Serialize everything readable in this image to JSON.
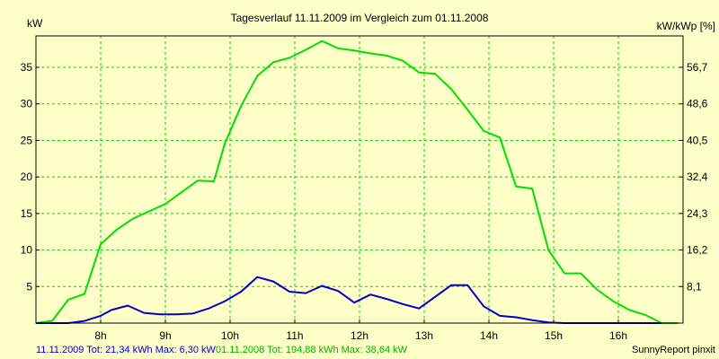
{
  "chart_data": {
    "type": "line",
    "title": "Tagesverlauf 11.11.2009 im Vergleich zum 01.11.2008",
    "ylabel_left": "kW",
    "ylabel_right": "kW/kWp [%]",
    "x_range": [
      7.0,
      17.0
    ],
    "ylim": [
      0,
      39.3
    ],
    "grid": true,
    "x_ticks": [
      {
        "value": 8,
        "label": "8h"
      },
      {
        "value": 9,
        "label": "9h"
      },
      {
        "value": 10,
        "label": "10h"
      },
      {
        "value": 11,
        "label": "11h"
      },
      {
        "value": 12,
        "label": "12h"
      },
      {
        "value": 13,
        "label": "13h"
      },
      {
        "value": 14,
        "label": "14h"
      },
      {
        "value": 15,
        "label": "15h"
      },
      {
        "value": 16,
        "label": "16h"
      }
    ],
    "y_ticks_left": [
      {
        "value": 5,
        "label": "5"
      },
      {
        "value": 10,
        "label": "10"
      },
      {
        "value": 15,
        "label": "15"
      },
      {
        "value": 20,
        "label": "20"
      },
      {
        "value": 25,
        "label": "25"
      },
      {
        "value": 30,
        "label": "30"
      },
      {
        "value": 35,
        "label": "35"
      }
    ],
    "y_ticks_right": [
      {
        "value": 5,
        "label": "8,1"
      },
      {
        "value": 10,
        "label": "16,2"
      },
      {
        "value": 15,
        "label": "24,3"
      },
      {
        "value": 20,
        "label": "32,4"
      },
      {
        "value": 25,
        "label": "40,5"
      },
      {
        "value": 30,
        "label": "48,6"
      },
      {
        "value": 35,
        "label": "56,7"
      }
    ],
    "series": [
      {
        "name": "01.11.2008",
        "color": "#00e000",
        "x": [
          7.0,
          7.25,
          7.5,
          7.75,
          8.0,
          8.25,
          8.5,
          8.75,
          9.0,
          9.25,
          9.5,
          9.75,
          9.92,
          10.17,
          10.42,
          10.67,
          10.92,
          11.17,
          11.42,
          11.67,
          11.92,
          12.17,
          12.42,
          12.67,
          12.92,
          13.17,
          13.42,
          13.67,
          13.92,
          14.17,
          14.42,
          14.67,
          14.92,
          15.17,
          15.42,
          15.67,
          15.92,
          16.17,
          16.42,
          16.67,
          16.92
        ],
        "values": [
          0.0,
          0.3,
          3.2,
          4.0,
          10.8,
          12.8,
          14.3,
          15.3,
          16.3,
          17.9,
          19.5,
          19.4,
          24.6,
          29.7,
          33.8,
          35.7,
          36.3,
          37.4,
          38.6,
          37.6,
          37.3,
          36.9,
          36.6,
          35.9,
          34.3,
          34.1,
          32.0,
          29.2,
          26.3,
          25.4,
          18.7,
          18.4,
          10.0,
          6.8,
          6.8,
          4.6,
          3.0,
          1.8,
          1.1,
          0.0,
          0.0
        ]
      },
      {
        "name": "11.11.2009",
        "color": "#0000cc",
        "x": [
          7.0,
          7.25,
          7.5,
          7.75,
          8.0,
          8.17,
          8.42,
          8.67,
          8.92,
          9.17,
          9.42,
          9.67,
          9.92,
          10.17,
          10.42,
          10.67,
          10.92,
          11.17,
          11.42,
          11.67,
          11.92,
          12.17,
          12.42,
          12.67,
          12.92,
          13.17,
          13.42,
          13.67,
          13.92,
          14.17,
          14.42,
          14.67,
          14.92,
          15.17,
          15.42,
          15.67,
          15.92,
          16.17,
          16.42,
          16.67
        ],
        "values": [
          0.0,
          0.0,
          0.0,
          0.3,
          1.0,
          1.8,
          2.4,
          1.4,
          1.2,
          1.2,
          1.3,
          2.0,
          3.0,
          4.3,
          6.3,
          5.7,
          4.3,
          4.1,
          5.1,
          4.4,
          2.8,
          3.9,
          3.3,
          2.6,
          2.0,
          3.6,
          5.2,
          5.2,
          2.3,
          1.0,
          0.8,
          0.4,
          0.1,
          0.0,
          0.0,
          0.0,
          0.0,
          0.0,
          0.0,
          0.0
        ]
      }
    ],
    "footer": {
      "series_2009_text": "11.11.2009 Tot: 21,34 kWh Max: 6,30 kW",
      "series_2008_text": "01.11.2008 Tot: 194,88 kWh Max: 38,64 kW",
      "credit": "SunnyReport pinxit"
    }
  }
}
